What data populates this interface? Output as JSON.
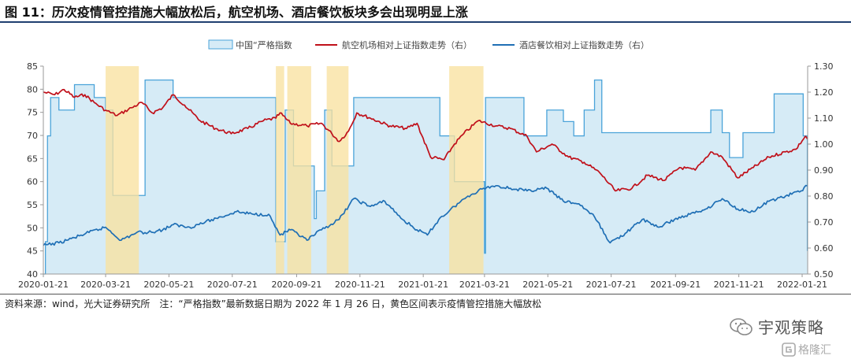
{
  "page": {
    "title": "图 11：历次疫情管控措施大幅放松后，航空机场、酒店餐饮板块多会出现明显上涨",
    "source_note": "资料来源：wind，光大证券研究所　注：“严格指数”最新数据日期为 2022 年 1 月 26 日，黄色区间表示疫情管控措施大幅放松",
    "brand": "宇观策略",
    "watermark": "格隆汇"
  },
  "colors": {
    "area_fill": "#d6ebf6",
    "area_line": "#4aa3d9",
    "aviation_line": "#c0101a",
    "hotel_line": "#1f6fb5",
    "highlight": "#f9e2a0",
    "title_rule": "#1f3f70"
  },
  "icons": [
    "wechat-icon",
    "gelonghui-logo-icon"
  ],
  "chart_data": {
    "type": "line",
    "title": "",
    "legend_position": "top-center",
    "grid": false,
    "x_tick_labels": [
      "2020-01-21",
      "2020-03-21",
      "2020-05-21",
      "2020-07-21",
      "2020-09-21",
      "2020-11-21",
      "2021-01-21",
      "2021-03-21",
      "2021-05-21",
      "2021-07-21",
      "2021-09-21",
      "2021-11-21",
      "2022-01-21"
    ],
    "x_range": [
      "2020-01-21",
      "2022-01-26"
    ],
    "y_left": {
      "min": 40,
      "max": 85,
      "ticks": [
        "40",
        "45",
        "50",
        "55",
        "60",
        "65",
        "70",
        "75",
        "80",
        "85"
      ]
    },
    "y_right": {
      "min": 0.5,
      "max": 1.3,
      "ticks": [
        "0.50",
        "0.60",
        "0.70",
        "0.80",
        "0.90",
        "1.00",
        "1.10",
        "1.20",
        "1.30"
      ]
    },
    "highlight_periods": [
      [
        "2020-03-21",
        "2020-04-22"
      ],
      [
        "2020-09-01",
        "2020-09-09"
      ],
      [
        "2020-09-12",
        "2020-10-05"
      ],
      [
        "2020-10-20",
        "2020-11-10"
      ],
      [
        "2021-02-15",
        "2021-03-20"
      ]
    ],
    "series": [
      {
        "name": "中国“严格指数",
        "axis": "left",
        "style": "area",
        "points": [
          [
            "2020-01-21",
            40
          ],
          [
            "2020-01-23",
            47
          ],
          [
            "2020-01-25",
            69.9
          ],
          [
            "2020-01-28",
            78.2
          ],
          [
            "2020-02-05",
            75.5
          ],
          [
            "2020-02-20",
            81
          ],
          [
            "2020-03-10",
            78.2
          ],
          [
            "2020-03-21",
            75.5
          ],
          [
            "2020-03-28",
            57
          ],
          [
            "2020-04-10",
            57
          ],
          [
            "2020-04-26",
            57
          ],
          [
            "2020-04-28",
            82
          ],
          [
            "2020-05-20",
            82
          ],
          [
            "2020-05-25",
            78.2
          ],
          [
            "2020-08-25",
            78.2
          ],
          [
            "2020-09-01",
            47
          ],
          [
            "2020-09-09",
            47
          ],
          [
            "2020-09-10",
            75.5
          ],
          [
            "2020-09-18",
            63.4
          ],
          [
            "2020-10-05",
            63.4
          ],
          [
            "2020-10-08",
            52
          ],
          [
            "2020-10-10",
            58
          ],
          [
            "2020-10-15",
            58
          ],
          [
            "2020-10-18",
            75.5
          ],
          [
            "2020-10-25",
            63.4
          ],
          [
            "2020-11-10",
            63.4
          ],
          [
            "2020-11-15",
            78.2
          ],
          [
            "2021-02-01",
            78.2
          ],
          [
            "2021-02-06",
            69.9
          ],
          [
            "2021-02-20",
            60
          ],
          [
            "2021-03-10",
            60
          ],
          [
            "2021-03-21",
            44.5
          ],
          [
            "2021-03-22",
            78.2
          ],
          [
            "2021-04-25",
            78.2
          ],
          [
            "2021-04-28",
            69.9
          ],
          [
            "2021-05-15",
            69.9
          ],
          [
            "2021-05-20",
            75.5
          ],
          [
            "2021-06-05",
            73
          ],
          [
            "2021-06-15",
            69.9
          ],
          [
            "2021-06-25",
            75.5
          ],
          [
            "2021-07-05",
            82
          ],
          [
            "2021-07-12",
            70.6
          ],
          [
            "2021-08-20",
            70.6
          ],
          [
            "2021-08-30",
            70.6
          ],
          [
            "2021-09-21",
            70.6
          ],
          [
            "2021-10-10",
            70.6
          ],
          [
            "2021-10-25",
            75.5
          ],
          [
            "2021-11-05",
            70.6
          ],
          [
            "2021-11-12",
            65.2
          ],
          [
            "2021-11-25",
            70.6
          ],
          [
            "2021-12-15",
            70.6
          ],
          [
            "2021-12-25",
            79
          ],
          [
            "2022-01-18",
            79
          ],
          [
            "2022-01-22",
            69.9
          ],
          [
            "2022-01-26",
            45
          ]
        ]
      },
      {
        "name": "航空机场相对上证指数走势（右）",
        "axis": "right",
        "style": "line",
        "points": [
          [
            "2020-01-21",
            1.2
          ],
          [
            "2020-02-01",
            1.19
          ],
          [
            "2020-02-10",
            1.21
          ],
          [
            "2020-02-20",
            1.18
          ],
          [
            "2020-03-01",
            1.19
          ],
          [
            "2020-03-10",
            1.16
          ],
          [
            "2020-03-21",
            1.13
          ],
          [
            "2020-04-01",
            1.11
          ],
          [
            "2020-04-15",
            1.14
          ],
          [
            "2020-04-25",
            1.16
          ],
          [
            "2020-05-05",
            1.12
          ],
          [
            "2020-05-15",
            1.14
          ],
          [
            "2020-05-25",
            1.19
          ],
          [
            "2020-06-05",
            1.15
          ],
          [
            "2020-06-20",
            1.09
          ],
          [
            "2020-07-05",
            1.06
          ],
          [
            "2020-07-20",
            1.04
          ],
          [
            "2020-08-05",
            1.06
          ],
          [
            "2020-08-20",
            1.09
          ],
          [
            "2020-09-01",
            1.1
          ],
          [
            "2020-09-05",
            1.12
          ],
          [
            "2020-09-15",
            1.08
          ],
          [
            "2020-10-01",
            1.07
          ],
          [
            "2020-10-15",
            1.08
          ],
          [
            "2020-10-25",
            1.04
          ],
          [
            "2020-11-01",
            1.01
          ],
          [
            "2020-11-10",
            1.05
          ],
          [
            "2020-11-18",
            1.12
          ],
          [
            "2020-12-01",
            1.1
          ],
          [
            "2020-12-20",
            1.07
          ],
          [
            "2021-01-05",
            1.06
          ],
          [
            "2021-01-15",
            1.08
          ],
          [
            "2021-01-28",
            0.95
          ],
          [
            "2021-02-10",
            0.94
          ],
          [
            "2021-02-20",
            1.0
          ],
          [
            "2021-03-01",
            1.04
          ],
          [
            "2021-03-15",
            1.09
          ],
          [
            "2021-04-01",
            1.07
          ],
          [
            "2021-04-15",
            1.06
          ],
          [
            "2021-05-01",
            1.03
          ],
          [
            "2021-05-10",
            0.97
          ],
          [
            "2021-05-25",
            1.0
          ],
          [
            "2021-06-10",
            0.95
          ],
          [
            "2021-06-25",
            0.93
          ],
          [
            "2021-07-10",
            0.89
          ],
          [
            "2021-07-25",
            0.82
          ],
          [
            "2021-08-10",
            0.83
          ],
          [
            "2021-08-25",
            0.88
          ],
          [
            "2021-09-10",
            0.86
          ],
          [
            "2021-09-25",
            0.91
          ],
          [
            "2021-10-10",
            0.9
          ],
          [
            "2021-10-25",
            0.97
          ],
          [
            "2021-11-05",
            0.95
          ],
          [
            "2021-11-20",
            0.87
          ],
          [
            "2021-12-05",
            0.91
          ],
          [
            "2021-12-20",
            0.95
          ],
          [
            "2022-01-05",
            0.97
          ],
          [
            "2022-01-15",
            0.98
          ],
          [
            "2022-01-24",
            1.03
          ],
          [
            "2022-01-26",
            1.02
          ]
        ]
      },
      {
        "name": "酒店餐饮相对上证指数走势（右）",
        "axis": "right",
        "style": "line",
        "points": [
          [
            "2020-01-21",
            0.61
          ],
          [
            "2020-02-05",
            0.62
          ],
          [
            "2020-02-20",
            0.64
          ],
          [
            "2020-03-05",
            0.66
          ],
          [
            "2020-03-21",
            0.68
          ],
          [
            "2020-04-05",
            0.63
          ],
          [
            "2020-04-20",
            0.66
          ],
          [
            "2020-05-01",
            0.66
          ],
          [
            "2020-05-15",
            0.67
          ],
          [
            "2020-05-25",
            0.69
          ],
          [
            "2020-06-10",
            0.68
          ],
          [
            "2020-06-25",
            0.7
          ],
          [
            "2020-07-10",
            0.72
          ],
          [
            "2020-07-25",
            0.74
          ],
          [
            "2020-08-10",
            0.73
          ],
          [
            "2020-08-25",
            0.73
          ],
          [
            "2020-09-05",
            0.65
          ],
          [
            "2020-09-15",
            0.67
          ],
          [
            "2020-10-01",
            0.63
          ],
          [
            "2020-10-15",
            0.67
          ],
          [
            "2020-11-01",
            0.71
          ],
          [
            "2020-11-15",
            0.79
          ],
          [
            "2020-12-01",
            0.76
          ],
          [
            "2020-12-15",
            0.78
          ],
          [
            "2021-01-01",
            0.71
          ],
          [
            "2021-01-15",
            0.67
          ],
          [
            "2021-01-25",
            0.65
          ],
          [
            "2021-02-05",
            0.71
          ],
          [
            "2021-02-20",
            0.76
          ],
          [
            "2021-03-05",
            0.8
          ],
          [
            "2021-03-20",
            0.83
          ],
          [
            "2021-04-01",
            0.84
          ],
          [
            "2021-04-15",
            0.83
          ],
          [
            "2021-05-01",
            0.82
          ],
          [
            "2021-05-20",
            0.83
          ],
          [
            "2021-06-05",
            0.78
          ],
          [
            "2021-06-20",
            0.77
          ],
          [
            "2021-07-05",
            0.72
          ],
          [
            "2021-07-20",
            0.62
          ],
          [
            "2021-08-05",
            0.66
          ],
          [
            "2021-08-20",
            0.71
          ],
          [
            "2021-09-05",
            0.68
          ],
          [
            "2021-09-20",
            0.71
          ],
          [
            "2021-10-05",
            0.73
          ],
          [
            "2021-10-20",
            0.75
          ],
          [
            "2021-11-05",
            0.79
          ],
          [
            "2021-11-20",
            0.75
          ],
          [
            "2021-12-05",
            0.74
          ],
          [
            "2021-12-20",
            0.78
          ],
          [
            "2022-01-05",
            0.8
          ],
          [
            "2022-01-20",
            0.82
          ],
          [
            "2022-01-26",
            0.84
          ]
        ]
      }
    ]
  }
}
